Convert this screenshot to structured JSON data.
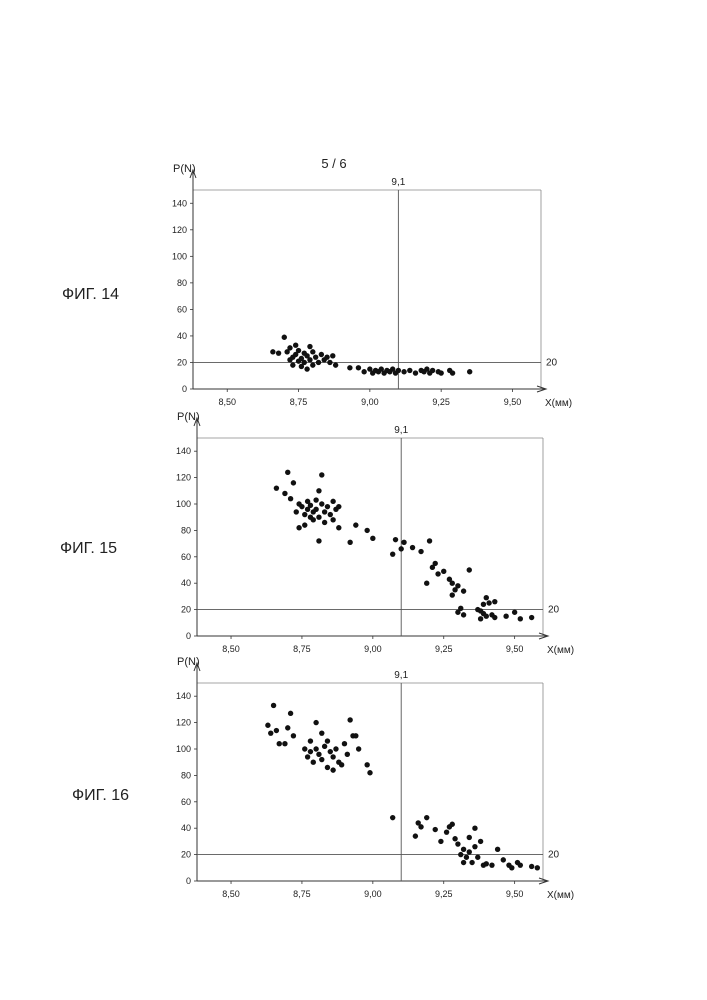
{
  "page_number": "5 / 6",
  "chart_data": [
    {
      "type": "scatter",
      "figure_label": "ФИГ. 14",
      "xlabel": "X(мм)",
      "ylabel": "P(N)",
      "xlim": [
        8.38,
        9.6
      ],
      "ylim": [
        0,
        150
      ],
      "x_tick_labels": [
        "8,50",
        "8,75",
        "9,00",
        "9,25",
        "9,50"
      ],
      "x_tick_values": [
        8.5,
        8.75,
        9.0,
        9.25,
        9.5
      ],
      "y_tick_labels": [
        "0",
        "20",
        "40",
        "60",
        "80",
        "100",
        "120",
        "140"
      ],
      "y_tick_values": [
        0,
        20,
        40,
        60,
        80,
        100,
        120,
        140
      ],
      "reference_lines": {
        "vertical": {
          "value": 9.1,
          "label": "9,1"
        },
        "horizontal": {
          "value": 20,
          "label": "20"
        }
      },
      "points": [
        {
          "x": 8.66,
          "y": 28
        },
        {
          "x": 8.68,
          "y": 27
        },
        {
          "x": 8.7,
          "y": 39
        },
        {
          "x": 8.71,
          "y": 28
        },
        {
          "x": 8.72,
          "y": 22
        },
        {
          "x": 8.72,
          "y": 31
        },
        {
          "x": 8.73,
          "y": 24
        },
        {
          "x": 8.73,
          "y": 18
        },
        {
          "x": 8.74,
          "y": 33
        },
        {
          "x": 8.74,
          "y": 26
        },
        {
          "x": 8.75,
          "y": 21
        },
        {
          "x": 8.75,
          "y": 29
        },
        {
          "x": 8.76,
          "y": 23
        },
        {
          "x": 8.76,
          "y": 17
        },
        {
          "x": 8.77,
          "y": 27
        },
        {
          "x": 8.77,
          "y": 20
        },
        {
          "x": 8.78,
          "y": 25
        },
        {
          "x": 8.78,
          "y": 15
        },
        {
          "x": 8.79,
          "y": 32
        },
        {
          "x": 8.79,
          "y": 22
        },
        {
          "x": 8.8,
          "y": 28
        },
        {
          "x": 8.8,
          "y": 18
        },
        {
          "x": 8.81,
          "y": 24
        },
        {
          "x": 8.82,
          "y": 20
        },
        {
          "x": 8.83,
          "y": 26
        },
        {
          "x": 8.84,
          "y": 22
        },
        {
          "x": 8.85,
          "y": 24
        },
        {
          "x": 8.86,
          "y": 20
        },
        {
          "x": 8.87,
          "y": 25
        },
        {
          "x": 8.88,
          "y": 18
        },
        {
          "x": 8.93,
          "y": 16
        },
        {
          "x": 8.96,
          "y": 16
        },
        {
          "x": 8.98,
          "y": 13
        },
        {
          "x": 9.0,
          "y": 15
        },
        {
          "x": 9.01,
          "y": 12
        },
        {
          "x": 9.02,
          "y": 14
        },
        {
          "x": 9.03,
          "y": 13
        },
        {
          "x": 9.04,
          "y": 15
        },
        {
          "x": 9.05,
          "y": 12
        },
        {
          "x": 9.06,
          "y": 14
        },
        {
          "x": 9.07,
          "y": 13
        },
        {
          "x": 9.08,
          "y": 15
        },
        {
          "x": 9.09,
          "y": 12
        },
        {
          "x": 9.1,
          "y": 14
        },
        {
          "x": 9.12,
          "y": 13
        },
        {
          "x": 9.14,
          "y": 14
        },
        {
          "x": 9.16,
          "y": 12
        },
        {
          "x": 9.18,
          "y": 14
        },
        {
          "x": 9.19,
          "y": 13
        },
        {
          "x": 9.2,
          "y": 15
        },
        {
          "x": 9.21,
          "y": 12
        },
        {
          "x": 9.22,
          "y": 14
        },
        {
          "x": 9.24,
          "y": 13
        },
        {
          "x": 9.25,
          "y": 12
        },
        {
          "x": 9.28,
          "y": 14
        },
        {
          "x": 9.29,
          "y": 12
        },
        {
          "x": 9.35,
          "y": 13
        }
      ]
    },
    {
      "type": "scatter",
      "figure_label": "ФИГ. 15",
      "xlabel": "X(мм)",
      "ylabel": "P(N)",
      "xlim": [
        8.38,
        9.6
      ],
      "ylim": [
        0,
        150
      ],
      "x_tick_labels": [
        "8,50",
        "8,75",
        "9,00",
        "9,25",
        "9,50"
      ],
      "x_tick_values": [
        8.5,
        8.75,
        9.0,
        9.25,
        9.5
      ],
      "y_tick_labels": [
        "0",
        "20",
        "40",
        "60",
        "80",
        "100",
        "120",
        "140"
      ],
      "y_tick_values": [
        0,
        20,
        40,
        60,
        80,
        100,
        120,
        140
      ],
      "reference_lines": {
        "vertical": {
          "value": 9.1,
          "label": "9,1"
        },
        "horizontal": {
          "value": 20,
          "label": "20"
        }
      },
      "points": [
        {
          "x": 8.66,
          "y": 112
        },
        {
          "x": 8.69,
          "y": 108
        },
        {
          "x": 8.7,
          "y": 124
        },
        {
          "x": 8.71,
          "y": 104
        },
        {
          "x": 8.72,
          "y": 116
        },
        {
          "x": 8.73,
          "y": 94
        },
        {
          "x": 8.74,
          "y": 100
        },
        {
          "x": 8.74,
          "y": 82
        },
        {
          "x": 8.75,
          "y": 98
        },
        {
          "x": 8.76,
          "y": 92
        },
        {
          "x": 8.76,
          "y": 84
        },
        {
          "x": 8.77,
          "y": 96
        },
        {
          "x": 8.77,
          "y": 102
        },
        {
          "x": 8.78,
          "y": 90
        },
        {
          "x": 8.78,
          "y": 99
        },
        {
          "x": 8.79,
          "y": 94
        },
        {
          "x": 8.79,
          "y": 88
        },
        {
          "x": 8.8,
          "y": 103
        },
        {
          "x": 8.8,
          "y": 96
        },
        {
          "x": 8.81,
          "y": 110
        },
        {
          "x": 8.81,
          "y": 90
        },
        {
          "x": 8.81,
          "y": 72
        },
        {
          "x": 8.82,
          "y": 122
        },
        {
          "x": 8.82,
          "y": 100
        },
        {
          "x": 8.83,
          "y": 94
        },
        {
          "x": 8.83,
          "y": 86
        },
        {
          "x": 8.84,
          "y": 98
        },
        {
          "x": 8.85,
          "y": 92
        },
        {
          "x": 8.86,
          "y": 88
        },
        {
          "x": 8.86,
          "y": 102
        },
        {
          "x": 8.87,
          "y": 96
        },
        {
          "x": 8.88,
          "y": 82
        },
        {
          "x": 8.88,
          "y": 98
        },
        {
          "x": 8.92,
          "y": 71
        },
        {
          "x": 8.94,
          "y": 84
        },
        {
          "x": 8.98,
          "y": 80
        },
        {
          "x": 9.0,
          "y": 74
        },
        {
          "x": 9.07,
          "y": 62
        },
        {
          "x": 9.08,
          "y": 73
        },
        {
          "x": 9.1,
          "y": 66
        },
        {
          "x": 9.11,
          "y": 71
        },
        {
          "x": 9.14,
          "y": 67
        },
        {
          "x": 9.17,
          "y": 64
        },
        {
          "x": 9.19,
          "y": 40
        },
        {
          "x": 9.2,
          "y": 72
        },
        {
          "x": 9.21,
          "y": 52
        },
        {
          "x": 9.22,
          "y": 55
        },
        {
          "x": 9.23,
          "y": 47
        },
        {
          "x": 9.25,
          "y": 49
        },
        {
          "x": 9.27,
          "y": 43
        },
        {
          "x": 9.28,
          "y": 31
        },
        {
          "x": 9.28,
          "y": 40
        },
        {
          "x": 9.29,
          "y": 35
        },
        {
          "x": 9.3,
          "y": 38
        },
        {
          "x": 9.3,
          "y": 18
        },
        {
          "x": 9.31,
          "y": 21
        },
        {
          "x": 9.32,
          "y": 34
        },
        {
          "x": 9.32,
          "y": 16
        },
        {
          "x": 9.34,
          "y": 50
        },
        {
          "x": 9.37,
          "y": 20
        },
        {
          "x": 9.38,
          "y": 13
        },
        {
          "x": 9.38,
          "y": 19
        },
        {
          "x": 9.39,
          "y": 24
        },
        {
          "x": 9.39,
          "y": 17
        },
        {
          "x": 9.4,
          "y": 29
        },
        {
          "x": 9.4,
          "y": 15
        },
        {
          "x": 9.41,
          "y": 25
        },
        {
          "x": 9.42,
          "y": 16
        },
        {
          "x": 9.43,
          "y": 14
        },
        {
          "x": 9.43,
          "y": 26
        },
        {
          "x": 9.47,
          "y": 15
        },
        {
          "x": 9.5,
          "y": 18
        },
        {
          "x": 9.52,
          "y": 13
        },
        {
          "x": 9.56,
          "y": 14
        }
      ]
    },
    {
      "type": "scatter",
      "figure_label": "ФИГ. 16",
      "xlabel": "X(мм)",
      "ylabel": "P(N)",
      "xlim": [
        8.38,
        9.6
      ],
      "ylim": [
        0,
        150
      ],
      "x_tick_labels": [
        "8,50",
        "8,75",
        "9,00",
        "9,25",
        "9,50"
      ],
      "x_tick_values": [
        8.5,
        8.75,
        9.0,
        9.25,
        9.5
      ],
      "y_tick_labels": [
        "0",
        "20",
        "40",
        "60",
        "80",
        "100",
        "120",
        "140"
      ],
      "y_tick_values": [
        0,
        20,
        40,
        60,
        80,
        100,
        120,
        140
      ],
      "reference_lines": {
        "vertical": {
          "value": 9.1,
          "label": "9,1"
        },
        "horizontal": {
          "value": 20,
          "label": "20"
        }
      },
      "points": [
        {
          "x": 8.63,
          "y": 118
        },
        {
          "x": 8.64,
          "y": 112
        },
        {
          "x": 8.65,
          "y": 133
        },
        {
          "x": 8.66,
          "y": 114
        },
        {
          "x": 8.67,
          "y": 104
        },
        {
          "x": 8.69,
          "y": 104
        },
        {
          "x": 8.7,
          "y": 116
        },
        {
          "x": 8.71,
          "y": 127
        },
        {
          "x": 8.72,
          "y": 110
        },
        {
          "x": 8.76,
          "y": 100
        },
        {
          "x": 8.77,
          "y": 94
        },
        {
          "x": 8.78,
          "y": 98
        },
        {
          "x": 8.78,
          "y": 106
        },
        {
          "x": 8.79,
          "y": 90
        },
        {
          "x": 8.8,
          "y": 120
        },
        {
          "x": 8.8,
          "y": 100
        },
        {
          "x": 8.81,
          "y": 96
        },
        {
          "x": 8.82,
          "y": 112
        },
        {
          "x": 8.82,
          "y": 92
        },
        {
          "x": 8.83,
          "y": 102
        },
        {
          "x": 8.84,
          "y": 86
        },
        {
          "x": 8.84,
          "y": 106
        },
        {
          "x": 8.85,
          "y": 98
        },
        {
          "x": 8.86,
          "y": 94
        },
        {
          "x": 8.86,
          "y": 84
        },
        {
          "x": 8.87,
          "y": 100
        },
        {
          "x": 8.88,
          "y": 90
        },
        {
          "x": 8.89,
          "y": 88
        },
        {
          "x": 8.9,
          "y": 104
        },
        {
          "x": 8.91,
          "y": 96
        },
        {
          "x": 8.92,
          "y": 122
        },
        {
          "x": 8.93,
          "y": 110
        },
        {
          "x": 8.94,
          "y": 110
        },
        {
          "x": 8.95,
          "y": 100
        },
        {
          "x": 8.98,
          "y": 88
        },
        {
          "x": 8.99,
          "y": 82
        },
        {
          "x": 9.07,
          "y": 48
        },
        {
          "x": 9.15,
          "y": 34
        },
        {
          "x": 9.16,
          "y": 44
        },
        {
          "x": 9.17,
          "y": 41
        },
        {
          "x": 9.19,
          "y": 48
        },
        {
          "x": 9.22,
          "y": 39
        },
        {
          "x": 9.24,
          "y": 30
        },
        {
          "x": 9.26,
          "y": 37
        },
        {
          "x": 9.27,
          "y": 41
        },
        {
          "x": 9.28,
          "y": 43
        },
        {
          "x": 9.29,
          "y": 32
        },
        {
          "x": 9.3,
          "y": 28
        },
        {
          "x": 9.31,
          "y": 20
        },
        {
          "x": 9.32,
          "y": 14
        },
        {
          "x": 9.32,
          "y": 24
        },
        {
          "x": 9.33,
          "y": 18
        },
        {
          "x": 9.34,
          "y": 22
        },
        {
          "x": 9.34,
          "y": 33
        },
        {
          "x": 9.35,
          "y": 14
        },
        {
          "x": 9.36,
          "y": 26
        },
        {
          "x": 9.36,
          "y": 40
        },
        {
          "x": 9.37,
          "y": 18
        },
        {
          "x": 9.38,
          "y": 30
        },
        {
          "x": 9.39,
          "y": 12
        },
        {
          "x": 9.4,
          "y": 13
        },
        {
          "x": 9.42,
          "y": 12
        },
        {
          "x": 9.44,
          "y": 24
        },
        {
          "x": 9.46,
          "y": 16
        },
        {
          "x": 9.48,
          "y": 12
        },
        {
          "x": 9.49,
          "y": 10
        },
        {
          "x": 9.51,
          "y": 14
        },
        {
          "x": 9.52,
          "y": 12
        },
        {
          "x": 9.56,
          "y": 11
        },
        {
          "x": 9.58,
          "y": 10
        }
      ]
    }
  ]
}
